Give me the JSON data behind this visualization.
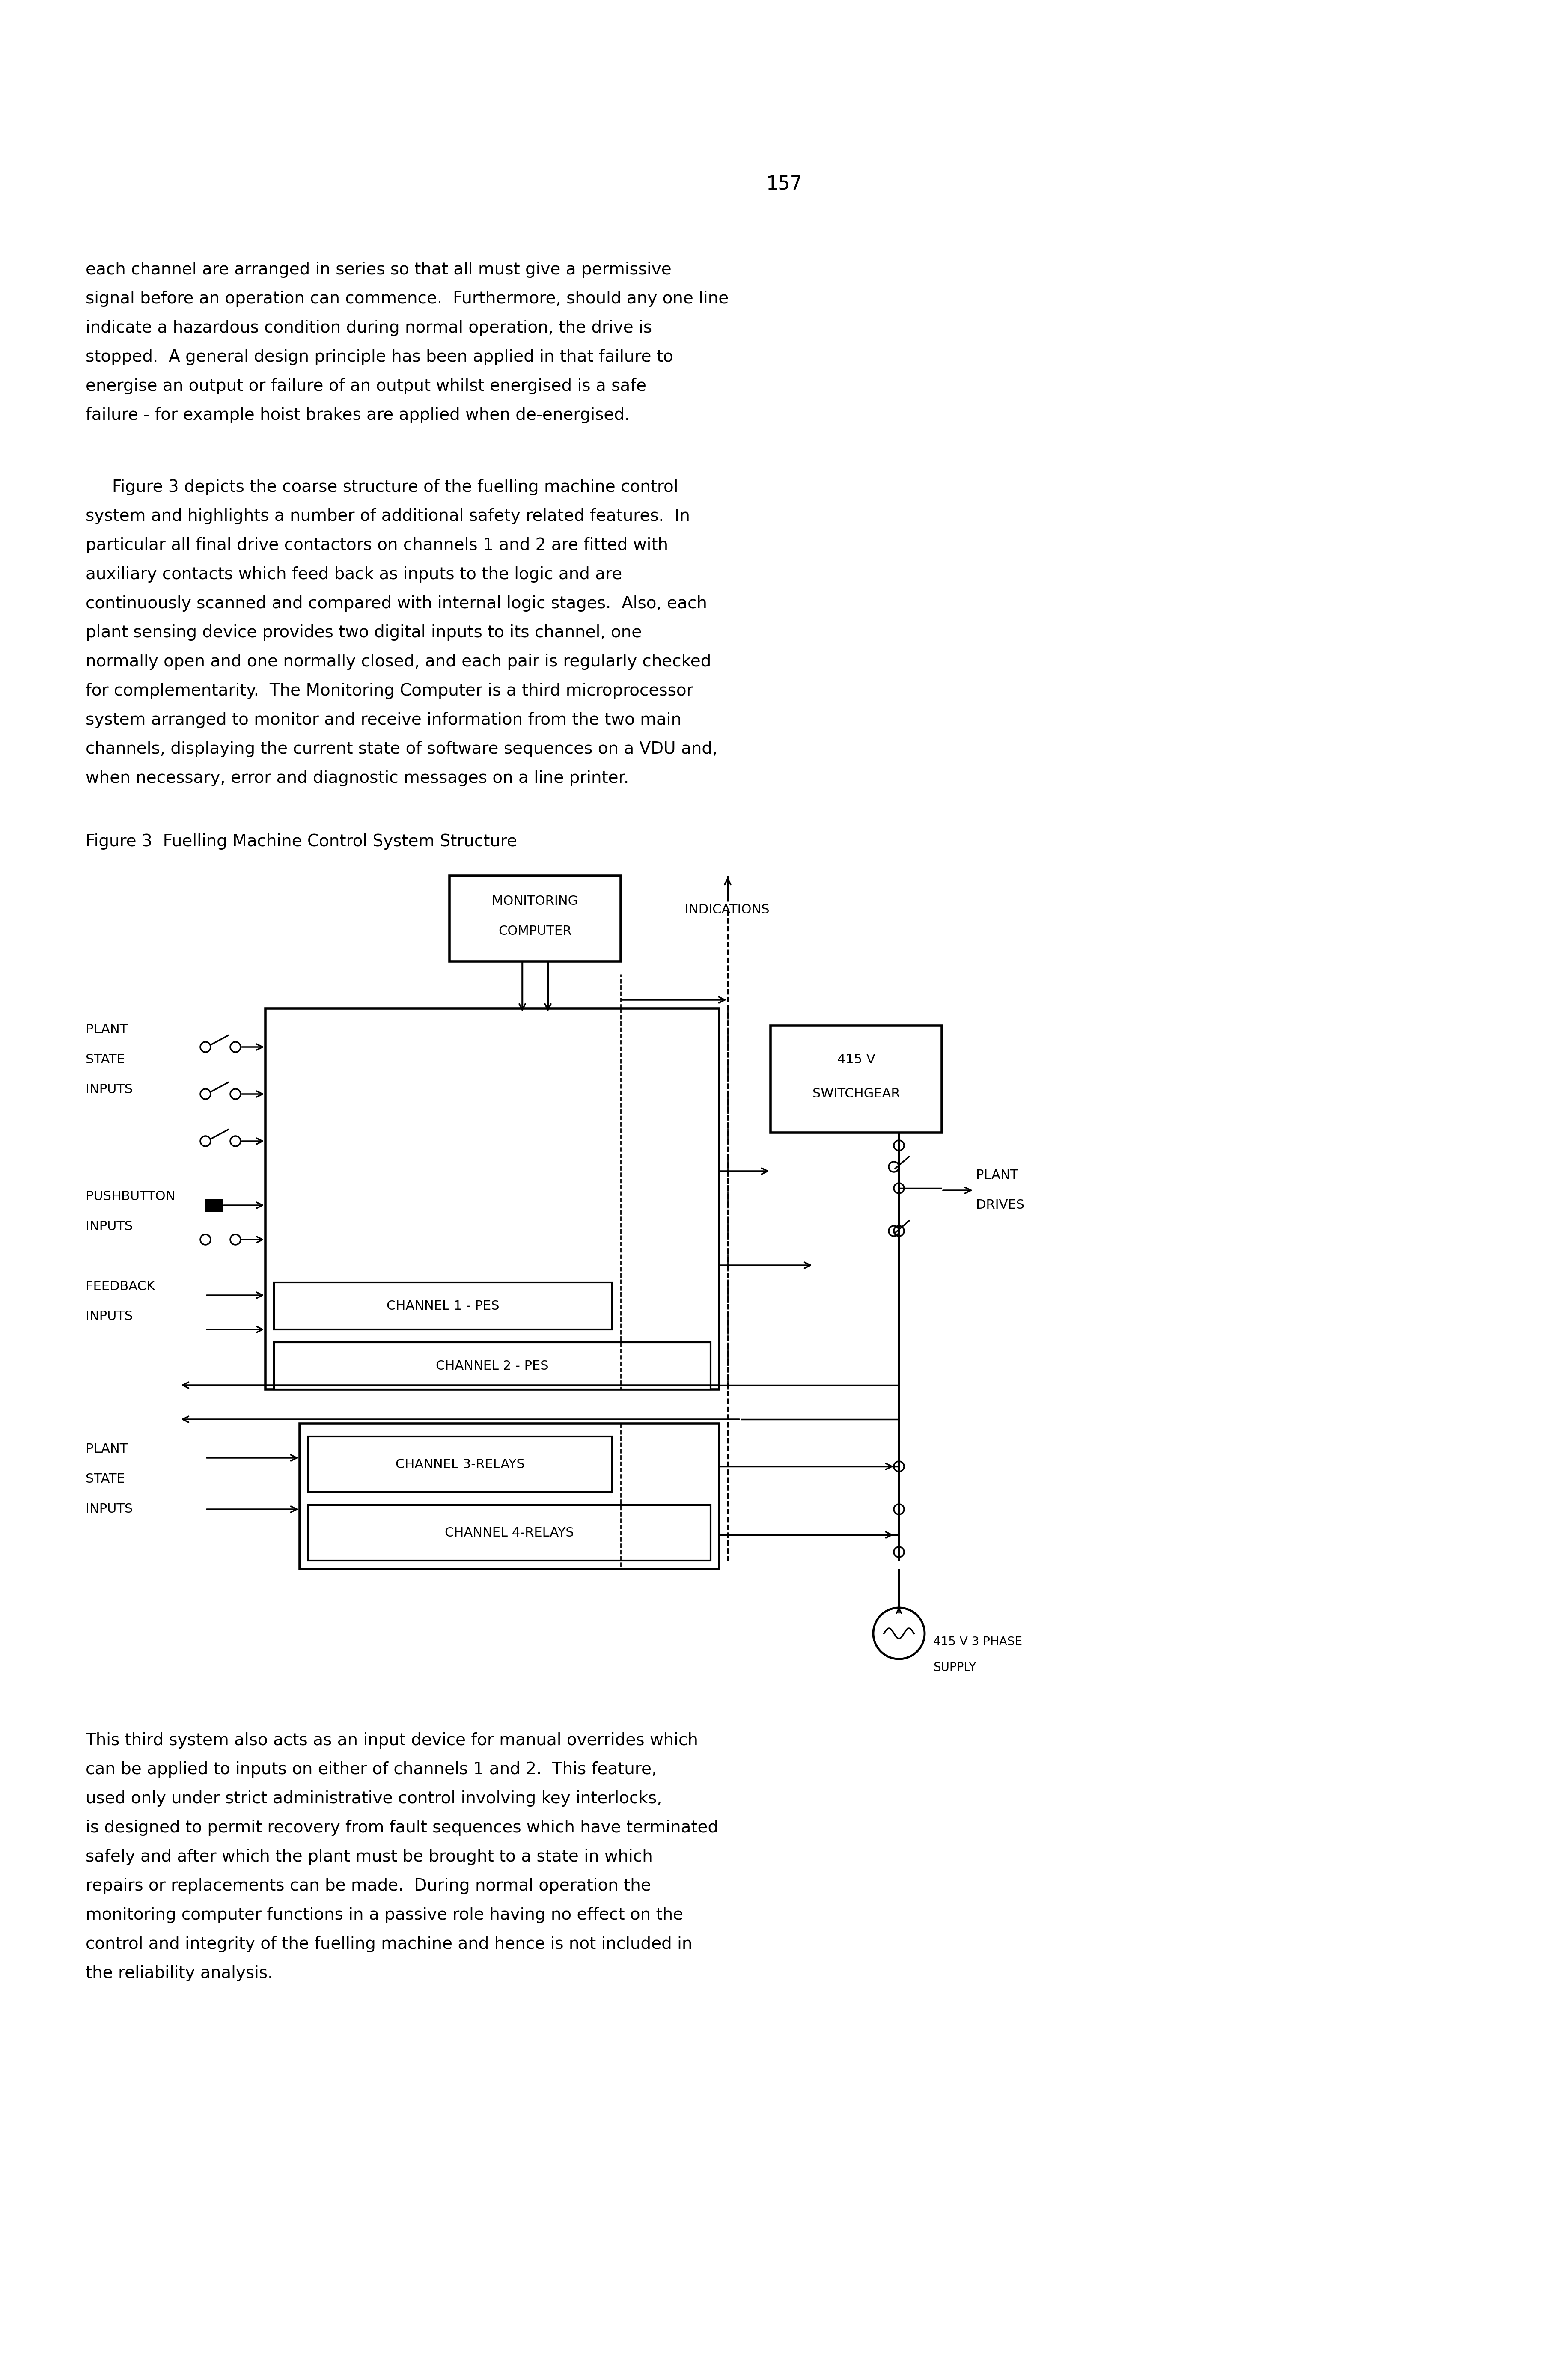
{
  "page_number": "157",
  "font_family": "Courier New",
  "bg_color": "#ffffff",
  "text_color": "#000000",
  "para1": "each channel are arranged in series so that all must give a permissive\nsignal before an operation can commence.  Furthermore, should any one line\nindicate a hazardous condition during normal operation, the drive is\nstopped.  A general design principle has been applied in that failure to\nenergi se an output or failure of an output whilst energised is a safe\nfailure - for example hoist brakes are applied when de-energised.",
  "para1_lines": [
    "each channel are arranged in series so that all must give a permissive",
    "signal before an operation can commence.  Furthermore, should any one line",
    "indicate a hazardous condition during normal operation, the drive is",
    "stopped.  A general design principle has been applied in that failure to",
    "energise an output or failure of an output whilst energised is a safe",
    "failure - for example hoist brakes are applied when de-energised."
  ],
  "para2_lines": [
    "     Figure 3 depicts the coarse structure of the fuelling machine control",
    "system and highlights a number of additional safety related features.  In",
    "particular all final drive contactors on channels 1 and 2 are fitted with",
    "auxiliary contacts which feed back as inputs to the logic and are",
    "continuously scanned and compared with internal logic stages.  Also, each",
    "plant sensing device provides two digital inputs to its channel, one",
    "normally open and one normally closed, and each pair is regularly checked",
    "for complementarity.  The Monitoring Computer is a third microprocessor",
    "system arranged to monitor and receive information from the two main",
    "channels, displaying the current state of software sequences on a VDU and,",
    "when necessary, error and diagnostic messages on a line printer."
  ],
  "figure_caption": "Figure 3  Fuelling Machine Control System Structure",
  "para3_lines": [
    "This third system also acts as an input device for manual overrides which",
    "can be applied to inputs on either of channels 1 and 2.  This feature,",
    "used only under strict administrative control involving key interlocks,",
    "is designed to permit recovery from fault sequences which have terminated",
    "safely and after which the plant must be brought to a state in which",
    "repairs or replacements can be made.  During normal operation the",
    "monitoring computer functions in a passive role having no effect on the",
    "control and integrity of the fuelling machine and hence is not included in",
    "the reliability analysis."
  ]
}
